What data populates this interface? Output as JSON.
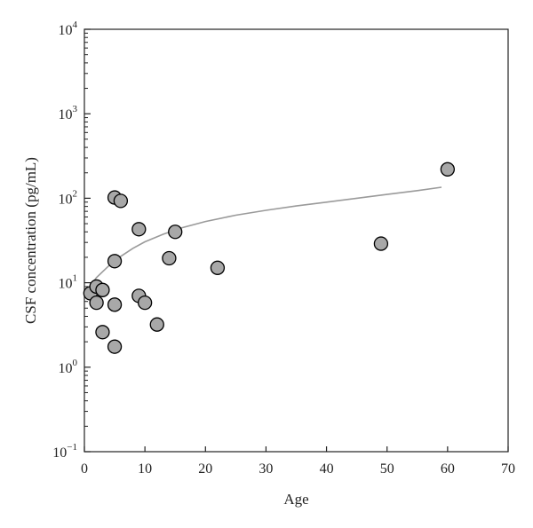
{
  "chart_data": {
    "type": "scatter",
    "title": "",
    "xlabel": "Age",
    "ylabel": "CSF concentration  (pg/mL)",
    "xlim": [
      0,
      70
    ],
    "ylim": [
      0.1,
      10000
    ],
    "yscale": "log",
    "x_ticks": [
      "0",
      "10",
      "20",
      "30",
      "40",
      "50",
      "60",
      "70"
    ],
    "y_ticks": [
      {
        "base": "10",
        "exp": "−1"
      },
      {
        "base": "10",
        "exp": "0"
      },
      {
        "base": "10",
        "exp": "1"
      },
      {
        "base": "10",
        "exp": "2"
      },
      {
        "base": "10",
        "exp": "3"
      },
      {
        "base": "10",
        "exp": "4"
      }
    ],
    "grid": false,
    "legend": "none",
    "points": [
      {
        "x": 1,
        "y": 7.5
      },
      {
        "x": 2,
        "y": 9
      },
      {
        "x": 2,
        "y": 5.8
      },
      {
        "x": 3,
        "y": 8.2
      },
      {
        "x": 3,
        "y": 2.6
      },
      {
        "x": 5,
        "y": 102
      },
      {
        "x": 5,
        "y": 18
      },
      {
        "x": 5,
        "y": 5.5
      },
      {
        "x": 5,
        "y": 1.75
      },
      {
        "x": 6,
        "y": 93
      },
      {
        "x": 9,
        "y": 43
      },
      {
        "x": 9,
        "y": 7
      },
      {
        "x": 10,
        "y": 5.8
      },
      {
        "x": 12,
        "y": 3.2
      },
      {
        "x": 14,
        "y": 19.5
      },
      {
        "x": 15,
        "y": 40
      },
      {
        "x": 22,
        "y": 15
      },
      {
        "x": 49,
        "y": 29
      },
      {
        "x": 60,
        "y": 220
      }
    ],
    "fit_curve": [
      {
        "x": 0.5,
        "y": 8.2
      },
      {
        "x": 2,
        "y": 11.5
      },
      {
        "x": 4,
        "y": 15.8
      },
      {
        "x": 6,
        "y": 20.5
      },
      {
        "x": 8,
        "y": 25.5
      },
      {
        "x": 10,
        "y": 30.5
      },
      {
        "x": 13,
        "y": 37.5
      },
      {
        "x": 16,
        "y": 44.5
      },
      {
        "x": 20,
        "y": 53
      },
      {
        "x": 25,
        "y": 63
      },
      {
        "x": 30,
        "y": 72
      },
      {
        "x": 35,
        "y": 81
      },
      {
        "x": 40,
        "y": 90
      },
      {
        "x": 45,
        "y": 100
      },
      {
        "x": 50,
        "y": 111
      },
      {
        "x": 55,
        "y": 123
      },
      {
        "x": 59,
        "y": 135
      }
    ],
    "colors": {
      "marker_fill": "#a8a8a8",
      "marker_stroke": "#000000",
      "fit_line": "#9a9a9a",
      "axis": "#222222"
    }
  }
}
